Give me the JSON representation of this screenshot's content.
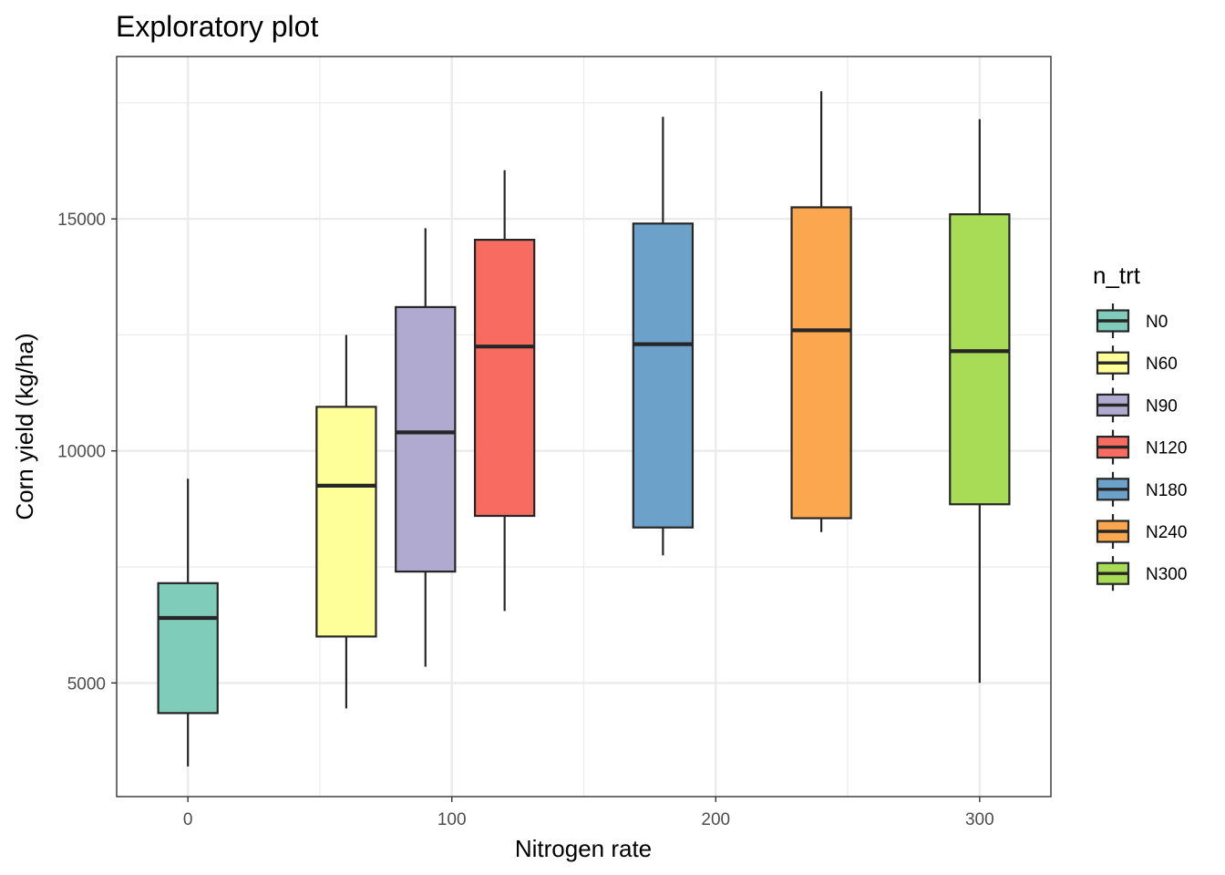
{
  "chart_data": {
    "type": "boxplot",
    "title": "Exploratory plot",
    "xlabel": "Nitrogen rate",
    "ylabel": "Corn yield (kg/ha)",
    "xlim": [
      -27,
      327
    ],
    "ylim": [
      2550,
      18500
    ],
    "x_ticks": [
      0,
      100,
      200,
      300
    ],
    "y_ticks": [
      5000,
      10000,
      15000
    ],
    "x_tick_labels": [
      "0",
      "100",
      "200",
      "300"
    ],
    "y_tick_labels": [
      "5000",
      "10000",
      "15000"
    ],
    "grid": true,
    "legend": {
      "title": "n_trt",
      "position": "right"
    },
    "box_width": 22.5,
    "series": [
      {
        "name": "N0",
        "x": 0,
        "color": "#7fccba",
        "whisker_low": 3200,
        "q1": 4350,
        "median": 6400,
        "q3": 7150,
        "whisker_high": 9400
      },
      {
        "name": "N60",
        "x": 60,
        "color": "#ffff99",
        "whisker_low": 4450,
        "q1": 6000,
        "median": 9250,
        "q3": 10950,
        "whisker_high": 12500
      },
      {
        "name": "N90",
        "x": 90,
        "color": "#b0aad0",
        "whisker_low": 5350,
        "q1": 7400,
        "median": 10400,
        "q3": 13100,
        "whisker_high": 14800
      },
      {
        "name": "N120",
        "x": 120,
        "color": "#f76b61",
        "whisker_low": 6550,
        "q1": 8600,
        "median": 12250,
        "q3": 14550,
        "whisker_high": 16050
      },
      {
        "name": "N180",
        "x": 180,
        "color": "#6ca2c9",
        "whisker_low": 7750,
        "q1": 8350,
        "median": 12300,
        "q3": 14900,
        "whisker_high": 17200
      },
      {
        "name": "N240",
        "x": 240,
        "color": "#fba74f",
        "whisker_low": 8250,
        "q1": 8550,
        "median": 12600,
        "q3": 15250,
        "whisker_high": 17750
      },
      {
        "name": "N300",
        "x": 300,
        "color": "#a8db56",
        "whisker_low": 5000,
        "q1": 8850,
        "median": 12150,
        "q3": 15100,
        "whisker_high": 17150
      }
    ]
  }
}
